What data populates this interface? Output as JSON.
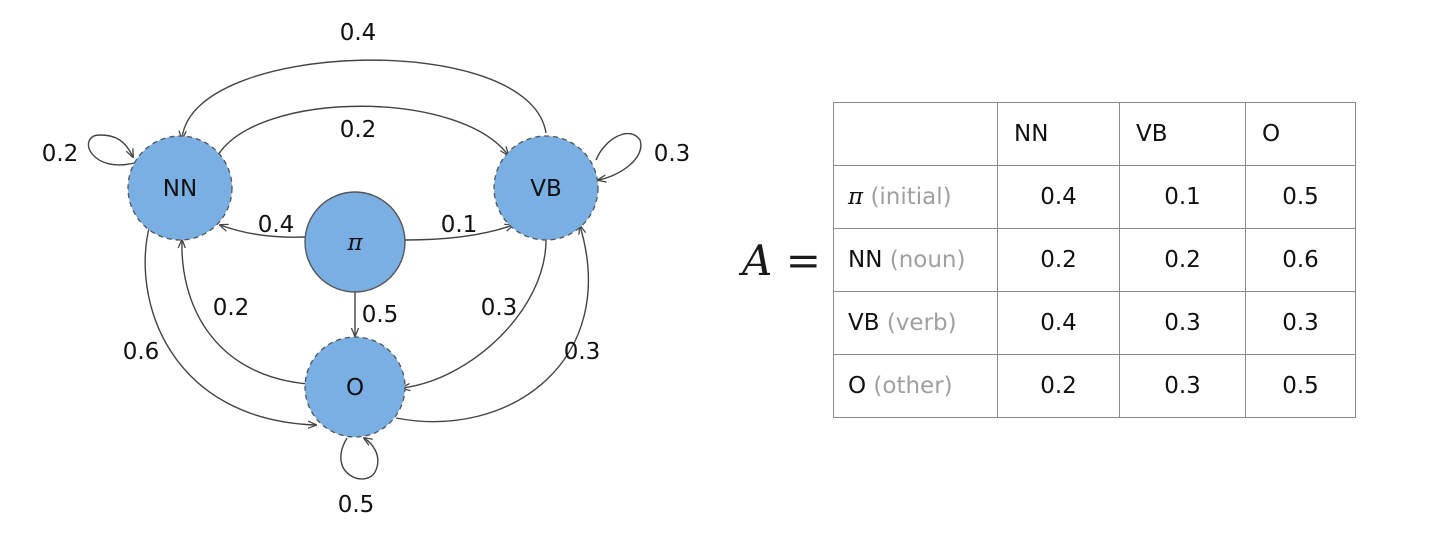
{
  "diagram": {
    "nodes": {
      "nn": "NN",
      "vb": "VB",
      "o": "O",
      "pi": "π"
    },
    "node_color": "#7aafe3",
    "edges": {
      "nn_to_vb": "0.2",
      "vb_to_nn": "0.4",
      "nn_self": "0.2",
      "vb_self": "0.3",
      "o_self": "0.5",
      "pi_to_nn": "0.4",
      "pi_to_vb": "0.1",
      "pi_to_o": "0.5",
      "o_to_nn": "0.2",
      "vb_to_o": "0.3",
      "nn_to_o": "0.6",
      "o_to_vb": "0.3"
    }
  },
  "equation": {
    "variable": "A",
    "operator": "="
  },
  "matrix": {
    "columns": [
      "NN",
      "VB",
      "O"
    ],
    "rows": [
      {
        "name": "π",
        "desc": "(initial)",
        "values": [
          "0.4",
          "0.1",
          "0.5"
        ]
      },
      {
        "name": "NN",
        "desc": "(noun)",
        "values": [
          "0.2",
          "0.2",
          "0.6"
        ]
      },
      {
        "name": "VB",
        "desc": "(verb)",
        "values": [
          "0.4",
          "0.3",
          "0.3"
        ]
      },
      {
        "name": "O",
        "desc": "(other)",
        "values": [
          "0.2",
          "0.3",
          "0.5"
        ]
      }
    ]
  }
}
